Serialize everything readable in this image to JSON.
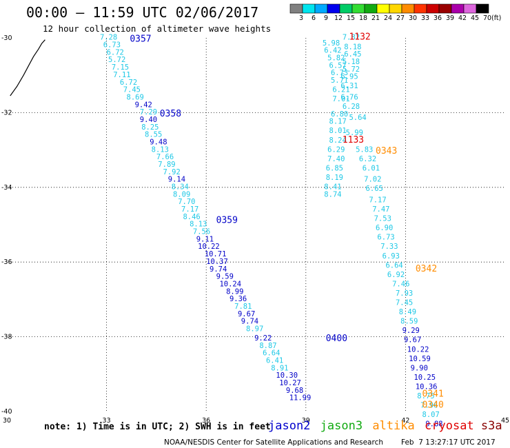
{
  "title": "00:00 – 11:59 UTC 02/06/2017",
  "subtitle": "12 hour collection of altimeter wave heights",
  "scale": {
    "unit": "(ft)",
    "bins": [
      {
        "label": "3",
        "color": "#808080"
      },
      {
        "label": "6",
        "color": "#00e5ee"
      },
      {
        "label": "9",
        "color": "#00aaff"
      },
      {
        "label": "12",
        "color": "#0000ee"
      },
      {
        "label": "15",
        "color": "#00cc66"
      },
      {
        "label": "18",
        "color": "#33dd33"
      },
      {
        "label": "21",
        "color": "#11aa11"
      },
      {
        "label": "24",
        "color": "#ffff00"
      },
      {
        "label": "27",
        "color": "#ffd700"
      },
      {
        "label": "30",
        "color": "#ff8c00"
      },
      {
        "label": "33",
        "color": "#ff3300"
      },
      {
        "label": "36",
        "color": "#cc0000"
      },
      {
        "label": "39",
        "color": "#990000"
      },
      {
        "label": "42",
        "color": "#aa00aa"
      },
      {
        "label": "45",
        "color": "#dd66dd"
      },
      {
        "label": "70",
        "color": "#000000"
      }
    ]
  },
  "map": {
    "lon_min": 30,
    "lon_max": 45,
    "lat_min": -40,
    "lat_max": -30,
    "x_ticks": [
      "30",
      "33",
      "36",
      "39",
      "42",
      "45"
    ],
    "y_ticks": [
      "-30",
      "-32",
      "-34",
      "-36",
      "-38",
      "-40"
    ]
  },
  "colors": {
    "light": "#1ec8e6",
    "mid": "#00aaff",
    "dark": "#0000c8",
    "red": "#e00000",
    "orange": "#ff8c00"
  },
  "tracks": [
    {
      "time": "0357",
      "time_color": "dark",
      "lon": 33.7,
      "lat": -30.1
    },
    {
      "time": "0358",
      "time_color": "dark",
      "lon": 34.6,
      "lat": -32.1
    },
    {
      "time": "0359",
      "time_color": "dark",
      "lon": 36.3,
      "lat": -34.95
    },
    {
      "time": "0400",
      "time_color": "dark",
      "lon": 39.6,
      "lat": -38.12
    },
    {
      "time": "1132",
      "time_color": "red",
      "lon": 40.3,
      "lat": -30.05
    },
    {
      "time": "1133",
      "time_color": "red",
      "lon": 40.1,
      "lat": -32.8
    },
    {
      "time": "0343",
      "time_color": "orange",
      "lon": 41.1,
      "lat": -33.1
    },
    {
      "time": "0342",
      "time_color": "orange",
      "lon": 42.3,
      "lat": -36.25
    },
    {
      "time": "0341",
      "time_color": "orange",
      "lon": 42.5,
      "lat": -39.6
    },
    {
      "time": "0340",
      "time_color": "orange",
      "lon": 42.5,
      "lat": -39.9
    }
  ],
  "observations": [
    {
      "v": "7.28",
      "c": "light",
      "lon": 32.8,
      "lat": -30.05
    },
    {
      "v": "6.73",
      "c": "light",
      "lon": 32.9,
      "lat": -30.25
    },
    {
      "v": "6.72",
      "c": "light",
      "lon": 33.0,
      "lat": -30.45
    },
    {
      "v": "5.72",
      "c": "light",
      "lon": 33.05,
      "lat": -30.65
    },
    {
      "v": "7.15",
      "c": "light",
      "lon": 33.15,
      "lat": -30.85
    },
    {
      "v": "7.11",
      "c": "light",
      "lon": 33.2,
      "lat": -31.05
    },
    {
      "v": "6.72",
      "c": "light",
      "lon": 33.4,
      "lat": -31.25
    },
    {
      "v": "7.45",
      "c": "light",
      "lon": 33.5,
      "lat": -31.45
    },
    {
      "v": "8.69",
      "c": "light",
      "lon": 33.6,
      "lat": -31.65
    },
    {
      "v": "9.42",
      "c": "dark",
      "lon": 33.85,
      "lat": -31.85
    },
    {
      "v": "7.29",
      "c": "light",
      "lon": 34.0,
      "lat": -32.05
    },
    {
      "v": "9.40",
      "c": "dark",
      "lon": 34.0,
      "lat": -32.25
    },
    {
      "v": "8.25",
      "c": "light",
      "lon": 34.05,
      "lat": -32.45
    },
    {
      "v": "8.55",
      "c": "light",
      "lon": 34.15,
      "lat": -32.65
    },
    {
      "v": "9.48",
      "c": "dark",
      "lon": 34.3,
      "lat": -32.85
    },
    {
      "v": "8.13",
      "c": "light",
      "lon": 34.35,
      "lat": -33.05
    },
    {
      "v": "7.66",
      "c": "light",
      "lon": 34.5,
      "lat": -33.25
    },
    {
      "v": "7.89",
      "c": "light",
      "lon": 34.55,
      "lat": -33.45
    },
    {
      "v": "7.92",
      "c": "light",
      "lon": 34.7,
      "lat": -33.65
    },
    {
      "v": "9.14",
      "c": "dark",
      "lon": 34.85,
      "lat": -33.85
    },
    {
      "v": "8.34",
      "c": "light",
      "lon": 34.95,
      "lat": -34.05
    },
    {
      "v": "8.09",
      "c": "light",
      "lon": 35.0,
      "lat": -34.25
    },
    {
      "v": "7.70",
      "c": "light",
      "lon": 35.15,
      "lat": -34.45
    },
    {
      "v": "7.17",
      "c": "light",
      "lon": 35.25,
      "lat": -34.65
    },
    {
      "v": "8.46",
      "c": "light",
      "lon": 35.3,
      "lat": -34.85
    },
    {
      "v": "8.13",
      "c": "light",
      "lon": 35.5,
      "lat": -35.05
    },
    {
      "v": "7.56",
      "c": "light",
      "lon": 35.6,
      "lat": -35.25
    },
    {
      "v": "9.11",
      "c": "dark",
      "lon": 35.7,
      "lat": -35.45
    },
    {
      "v": "10.22",
      "c": "dark",
      "lon": 35.75,
      "lat": -35.65
    },
    {
      "v": "10.71",
      "c": "dark",
      "lon": 35.95,
      "lat": -35.85
    },
    {
      "v": "10.37",
      "c": "dark",
      "lon": 36.0,
      "lat": -36.05
    },
    {
      "v": "9.74",
      "c": "dark",
      "lon": 36.1,
      "lat": -36.25
    },
    {
      "v": "9.59",
      "c": "dark",
      "lon": 36.3,
      "lat": -36.45
    },
    {
      "v": "10.24",
      "c": "dark",
      "lon": 36.4,
      "lat": -36.65
    },
    {
      "v": "8.99",
      "c": "dark",
      "lon": 36.6,
      "lat": -36.85
    },
    {
      "v": "9.36",
      "c": "dark",
      "lon": 36.7,
      "lat": -37.05
    },
    {
      "v": "7.81",
      "c": "light",
      "lon": 36.85,
      "lat": -37.25
    },
    {
      "v": "9.67",
      "c": "dark",
      "lon": 36.95,
      "lat": -37.45
    },
    {
      "v": "9.74",
      "c": "dark",
      "lon": 37.05,
      "lat": -37.65
    },
    {
      "v": "8.97",
      "c": "light",
      "lon": 37.2,
      "lat": -37.85
    },
    {
      "v": "9.22",
      "c": "dark",
      "lon": 37.45,
      "lat": -38.1
    },
    {
      "v": "8.87",
      "c": "light",
      "lon": 37.6,
      "lat": -38.3
    },
    {
      "v": "6.64",
      "c": "light",
      "lon": 37.7,
      "lat": -38.5
    },
    {
      "v": "6.41",
      "c": "light",
      "lon": 37.8,
      "lat": -38.7
    },
    {
      "v": "8.91",
      "c": "light",
      "lon": 37.95,
      "lat": -38.9
    },
    {
      "v": "10.30",
      "c": "dark",
      "lon": 38.1,
      "lat": -39.1
    },
    {
      "v": "10.27",
      "c": "dark",
      "lon": 38.2,
      "lat": -39.3
    },
    {
      "v": "9.68",
      "c": "dark",
      "lon": 38.4,
      "lat": -39.5
    },
    {
      "v": "11.99",
      "c": "dark",
      "lon": 38.5,
      "lat": -39.7
    },
    {
      "v": "5.98",
      "c": "light",
      "lon": 39.5,
      "lat": -30.2
    },
    {
      "v": "6.42",
      "c": "light",
      "lon": 39.55,
      "lat": -30.4
    },
    {
      "v": "5.82",
      "c": "light",
      "lon": 39.65,
      "lat": -30.6
    },
    {
      "v": "6.57",
      "c": "light",
      "lon": 39.7,
      "lat": -30.8
    },
    {
      "v": "6.73",
      "c": "light",
      "lon": 39.75,
      "lat": -31.0
    },
    {
      "v": "5.71",
      "c": "light",
      "lon": 39.75,
      "lat": -31.2
    },
    {
      "v": "6.21",
      "c": "light",
      "lon": 39.8,
      "lat": -31.45
    },
    {
      "v": "7.01",
      "c": "light",
      "lon": 39.8,
      "lat": -31.7
    },
    {
      "v": "6.80",
      "c": "light",
      "lon": 39.75,
      "lat": -32.1
    },
    {
      "v": "8.17",
      "c": "light",
      "lon": 39.7,
      "lat": -32.3
    },
    {
      "v": "8.01",
      "c": "light",
      "lon": 39.7,
      "lat": -32.55
    },
    {
      "v": "8.24",
      "c": "light",
      "lon": 39.7,
      "lat": -32.8
    },
    {
      "v": "6.29",
      "c": "light",
      "lon": 39.65,
      "lat": -33.05
    },
    {
      "v": "7.40",
      "c": "light",
      "lon": 39.65,
      "lat": -33.3
    },
    {
      "v": "6.85",
      "c": "light",
      "lon": 39.6,
      "lat": -33.55
    },
    {
      "v": "8.19",
      "c": "light",
      "lon": 39.6,
      "lat": -33.8
    },
    {
      "v": "8.41",
      "c": "light",
      "lon": 39.55,
      "lat": -34.05
    },
    {
      "v": "8.74",
      "c": "light",
      "lon": 39.55,
      "lat": -34.25
    },
    {
      "v": "7.82",
      "c": "light",
      "lon": 40.1,
      "lat": -30.05
    },
    {
      "v": "8.18",
      "c": "light",
      "lon": 40.15,
      "lat": -30.3
    },
    {
      "v": "6.45",
      "c": "light",
      "lon": 40.15,
      "lat": -30.5
    },
    {
      "v": "5.18",
      "c": "light",
      "lon": 40.1,
      "lat": -30.7
    },
    {
      "v": "5.72",
      "c": "light",
      "lon": 40.1,
      "lat": -30.9
    },
    {
      "v": "6.95",
      "c": "light",
      "lon": 40.05,
      "lat": -31.1
    },
    {
      "v": "6.31",
      "c": "light",
      "lon": 40.05,
      "lat": -31.35
    },
    {
      "v": "6.76",
      "c": "light",
      "lon": 40.05,
      "lat": -31.65
    },
    {
      "v": "6.28",
      "c": "light",
      "lon": 40.1,
      "lat": -31.9
    },
    {
      "v": "5.64",
      "c": "light",
      "lon": 40.3,
      "lat": -32.2
    },
    {
      "v": "5.99",
      "c": "light",
      "lon": 40.2,
      "lat": -32.6
    },
    {
      "v": "5.83",
      "c": "light",
      "lon": 40.5,
      "lat": -33.05
    },
    {
      "v": "6.32",
      "c": "light",
      "lon": 40.6,
      "lat": -33.3
    },
    {
      "v": "6.01",
      "c": "light",
      "lon": 40.7,
      "lat": -33.55
    },
    {
      "v": "7.02",
      "c": "light",
      "lon": 40.75,
      "lat": -33.85
    },
    {
      "v": "6.65",
      "c": "light",
      "lon": 40.8,
      "lat": -34.1
    },
    {
      "v": "7.17",
      "c": "light",
      "lon": 40.9,
      "lat": -34.4
    },
    {
      "v": "7.47",
      "c": "light",
      "lon": 41.0,
      "lat": -34.65
    },
    {
      "v": "7.53",
      "c": "light",
      "lon": 41.05,
      "lat": -34.9
    },
    {
      "v": "6.90",
      "c": "light",
      "lon": 41.1,
      "lat": -35.15
    },
    {
      "v": "6.73",
      "c": "light",
      "lon": 41.15,
      "lat": -35.4
    },
    {
      "v": "7.33",
      "c": "light",
      "lon": 41.25,
      "lat": -35.65
    },
    {
      "v": "6.93",
      "c": "light",
      "lon": 41.3,
      "lat": -35.9
    },
    {
      "v": "6.64",
      "c": "light",
      "lon": 41.4,
      "lat": -36.15
    },
    {
      "v": "6.92",
      "c": "light",
      "lon": 41.45,
      "lat": -36.4
    },
    {
      "v": "7.46",
      "c": "light",
      "lon": 41.6,
      "lat": -36.65
    },
    {
      "v": "7.93",
      "c": "light",
      "lon": 41.7,
      "lat": -36.9
    },
    {
      "v": "7.45",
      "c": "light",
      "lon": 41.7,
      "lat": -37.15
    },
    {
      "v": "8.49",
      "c": "light",
      "lon": 41.8,
      "lat": -37.4
    },
    {
      "v": "8.59",
      "c": "light",
      "lon": 41.85,
      "lat": -37.65
    },
    {
      "v": "9.29",
      "c": "dark",
      "lon": 41.9,
      "lat": -37.9
    },
    {
      "v": "9.67",
      "c": "dark",
      "lon": 41.95,
      "lat": -38.15
    },
    {
      "v": "10.22",
      "c": "dark",
      "lon": 42.05,
      "lat": -38.4
    },
    {
      "v": "10.59",
      "c": "dark",
      "lon": 42.1,
      "lat": -38.65
    },
    {
      "v": "9.90",
      "c": "dark",
      "lon": 42.15,
      "lat": -38.9
    },
    {
      "v": "10.25",
      "c": "dark",
      "lon": 42.25,
      "lat": -39.15
    },
    {
      "v": "10.36",
      "c": "dark",
      "lon": 42.3,
      "lat": -39.4
    },
    {
      "v": "8.75",
      "c": "light",
      "lon": 42.35,
      "lat": -39.65
    },
    {
      "v": "7.96",
      "c": "light",
      "lon": 42.45,
      "lat": -39.9
    },
    {
      "v": "8.07",
      "c": "light",
      "lon": 42.5,
      "lat": -40.15
    },
    {
      "v": "9.88",
      "c": "dark",
      "lon": 42.6,
      "lat": -40.4
    }
  ],
  "coastline": [
    [
      30.1,
      -31.55
    ],
    [
      30.3,
      -31.3
    ],
    [
      30.5,
      -31.0
    ],
    [
      30.65,
      -30.75
    ],
    [
      30.8,
      -30.5
    ],
    [
      30.95,
      -30.3
    ],
    [
      31.05,
      -30.15
    ],
    [
      31.15,
      -30.05
    ]
  ],
  "note": "note: 1) Time is in UTC; 2) SWH is in feet",
  "legend": [
    {
      "label": "jason2",
      "color": "#0000cc"
    },
    {
      "label": "jason3",
      "color": "#11aa11"
    },
    {
      "label": "altika",
      "color": "#ff8c00"
    },
    {
      "label": "cryosat",
      "color": "#e00000"
    },
    {
      "label": "s3a",
      "color": "#880000"
    }
  ],
  "footer_left": "NOAA/NESDIS Center for Satellite Applications and Research",
  "footer_right": "Feb  7 13:27:17 UTC 2017"
}
